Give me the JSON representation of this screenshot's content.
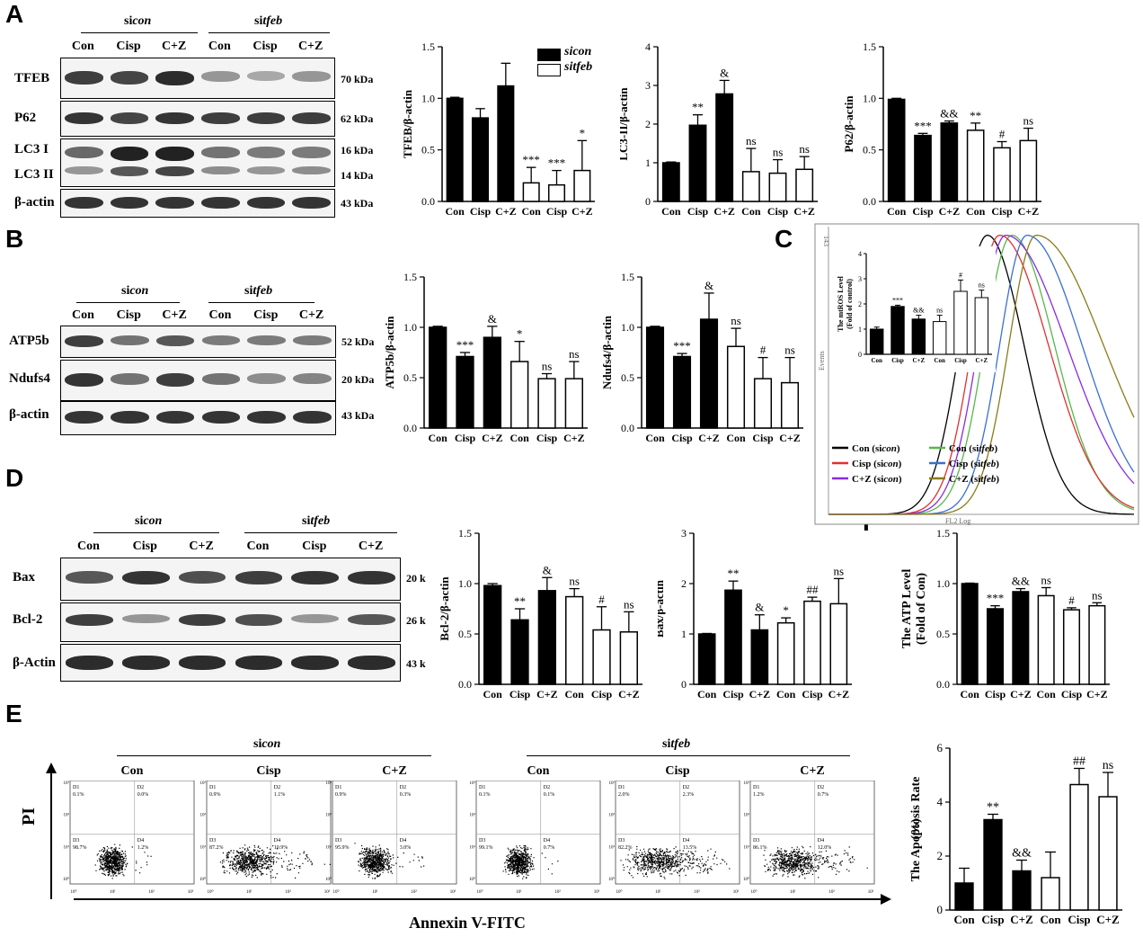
{
  "panel_letters": [
    "A",
    "B",
    "C",
    "D",
    "E",
    "F"
  ],
  "groups": {
    "sicon": "sicon",
    "sitfeb": "sitfeb",
    "si_prefix": "si",
    "con_suffix": "con",
    "tfeb_suffix": "tfeb"
  },
  "lanes": [
    "Con",
    "Cisp",
    "C+Z",
    "Con",
    "Cisp",
    "C+Z"
  ],
  "blots": {
    "A": [
      {
        "label": "TFEB",
        "kda": "70 kDa"
      },
      {
        "label": "P62",
        "kda": "62 kDa"
      },
      {
        "label": "LC3 I",
        "kda": "16 kDa"
      },
      {
        "label": "LC3 II",
        "kda": "14 kDa"
      },
      {
        "label": "β-actin",
        "kda": "43 kDa"
      }
    ],
    "B": [
      {
        "label": "ATP5b",
        "kda": "52 kDa"
      },
      {
        "label": "Ndufs4",
        "kda": "20 kDa"
      },
      {
        "label": "β-actin",
        "kda": "43 kDa"
      }
    ],
    "D": [
      {
        "label": "Bax",
        "kda": "20 k"
      },
      {
        "label": "Bcl-2",
        "kda": "26 k"
      },
      {
        "label": "β-Actin",
        "kda": "43 k"
      }
    ]
  },
  "legend_A": {
    "sicon": "sicon",
    "sitfeb": "sitfeb"
  },
  "chart_data": [
    {
      "id": "tfeb",
      "type": "bar",
      "ylabel": "TFEB/β-actin",
      "categories": [
        "Con",
        "Cisp",
        "C+Z",
        "Con",
        "Cisp",
        "C+Z"
      ],
      "values": [
        1.0,
        0.81,
        1.12,
        0.18,
        0.16,
        0.3
      ],
      "errors": [
        0.01,
        0.09,
        0.22,
        0.15,
        0.14,
        0.29
      ],
      "fill": [
        "black",
        "black",
        "black",
        "white",
        "white",
        "white"
      ],
      "sig": [
        "",
        "",
        "",
        "***",
        "***",
        "*"
      ],
      "ylim": [
        0,
        1.5
      ],
      "yticks": [
        "0.0",
        "0.5",
        "1.0",
        "1.5"
      ]
    },
    {
      "id": "lc3",
      "type": "bar",
      "ylabel": "LC3-II/β-actin",
      "categories": [
        "Con",
        "Cisp",
        "C+Z",
        "Con",
        "Cisp",
        "C+Z"
      ],
      "values": [
        1.0,
        1.97,
        2.78,
        0.77,
        0.73,
        0.83
      ],
      "errors": [
        0.02,
        0.27,
        0.35,
        0.6,
        0.35,
        0.33
      ],
      "fill": [
        "black",
        "black",
        "black",
        "white",
        "white",
        "white"
      ],
      "sig": [
        "",
        "**",
        "&",
        "ns",
        "ns",
        "ns"
      ],
      "ylim": [
        0,
        4
      ],
      "yticks": [
        "0",
        "1",
        "2",
        "3",
        "4"
      ]
    },
    {
      "id": "p62",
      "type": "bar",
      "ylabel": "P62/β-actin",
      "categories": [
        "Con",
        "Cisp",
        "C+Z",
        "Con",
        "Cisp",
        "C+Z"
      ],
      "values": [
        0.99,
        0.64,
        0.76,
        0.69,
        0.52,
        0.59
      ],
      "errors": [
        0.01,
        0.02,
        0.02,
        0.07,
        0.06,
        0.12
      ],
      "fill": [
        "black",
        "black",
        "black",
        "white",
        "white",
        "white"
      ],
      "sig": [
        "",
        "***",
        "&&",
        "**",
        "#",
        "ns"
      ],
      "ylim": [
        0,
        1.5
      ],
      "yticks": [
        "0.0",
        "0.5",
        "1.0",
        "1.5"
      ]
    },
    {
      "id": "atp5b",
      "type": "bar",
      "ylabel": "ATP5b/β-actin",
      "categories": [
        "Con",
        "Cisp",
        "C+Z",
        "Con",
        "Cisp",
        "C+Z"
      ],
      "values": [
        1.0,
        0.71,
        0.9,
        0.66,
        0.49,
        0.49
      ],
      "errors": [
        0.01,
        0.04,
        0.11,
        0.2,
        0.05,
        0.17
      ],
      "fill": [
        "black",
        "black",
        "black",
        "white",
        "white",
        "white"
      ],
      "sig": [
        "",
        "***",
        "&",
        "*",
        "ns",
        "ns"
      ],
      "ylim": [
        0,
        1.5
      ],
      "yticks": [
        "0.0",
        "0.5",
        "1.0",
        "1.5"
      ]
    },
    {
      "id": "ndufs4",
      "type": "bar",
      "ylabel": "Ndufs4/β-actin",
      "categories": [
        "Con",
        "Cisp",
        "C+Z",
        "Con",
        "Cisp",
        "C+Z"
      ],
      "values": [
        1.0,
        0.71,
        1.08,
        0.81,
        0.49,
        0.45
      ],
      "errors": [
        0.01,
        0.03,
        0.26,
        0.18,
        0.21,
        0.25
      ],
      "fill": [
        "black",
        "black",
        "black",
        "white",
        "white",
        "white"
      ],
      "sig": [
        "",
        "***",
        "&",
        "ns",
        "#",
        "ns"
      ],
      "ylim": [
        0,
        1.5
      ],
      "yticks": [
        "0.0",
        "0.5",
        "1.0",
        "1.5"
      ]
    },
    {
      "id": "mros",
      "type": "bar",
      "ylabel": "The mtROS Level (Fold of control)",
      "categories": [
        "Con",
        "Cisp",
        "C+Z",
        "Con",
        "Cisp",
        "C+Z"
      ],
      "values": [
        1.0,
        1.9,
        1.4,
        1.3,
        2.5,
        2.25
      ],
      "errors": [
        0.08,
        0.05,
        0.15,
        0.25,
        0.45,
        0.3
      ],
      "fill": [
        "black",
        "black",
        "black",
        "white",
        "white",
        "white"
      ],
      "sig": [
        "",
        "***",
        "&&",
        "ns",
        "#",
        "ns"
      ],
      "ylim": [
        0,
        4
      ],
      "yticks": [
        "0",
        "1",
        "2",
        "3",
        "4"
      ]
    },
    {
      "id": "bcl2",
      "type": "bar",
      "ylabel": "Bcl-2/β-actin",
      "categories": [
        "Con",
        "Cisp",
        "C+Z",
        "Con",
        "Cisp",
        "C+Z"
      ],
      "values": [
        0.98,
        0.64,
        0.93,
        0.87,
        0.54,
        0.52
      ],
      "errors": [
        0.02,
        0.11,
        0.13,
        0.08,
        0.23,
        0.2
      ],
      "fill": [
        "black",
        "black",
        "black",
        "white",
        "white",
        "white"
      ],
      "sig": [
        "",
        "**",
        "&",
        "ns",
        "#",
        "ns"
      ],
      "ylim": [
        0,
        1.5
      ],
      "yticks": [
        "0.0",
        "0.5",
        "1.0",
        "1.5"
      ]
    },
    {
      "id": "bax",
      "type": "bar",
      "ylabel": "Bax/β-actin",
      "categories": [
        "Con",
        "Cisp",
        "C+Z",
        "Con",
        "Cisp",
        "C+Z"
      ],
      "values": [
        1.0,
        1.87,
        1.08,
        1.22,
        1.65,
        1.6
      ],
      "errors": [
        0.01,
        0.18,
        0.3,
        0.1,
        0.08,
        0.5
      ],
      "fill": [
        "black",
        "black",
        "black",
        "white",
        "white",
        "white"
      ],
      "sig": [
        "",
        "**",
        "&",
        "*",
        "##",
        "ns"
      ],
      "ylim": [
        0,
        3
      ],
      "yticks": [
        "0",
        "1",
        "2",
        "3"
      ]
    },
    {
      "id": "atp",
      "type": "bar",
      "ylabel": "The ATP Level (Fold of Con)",
      "categories": [
        "Con",
        "Cisp",
        "C+Z",
        "Con",
        "Cisp",
        "C+Z"
      ],
      "values": [
        1.0,
        0.75,
        0.92,
        0.88,
        0.74,
        0.78
      ],
      "errors": [
        0.005,
        0.03,
        0.03,
        0.08,
        0.02,
        0.03
      ],
      "fill": [
        "black",
        "black",
        "black",
        "white",
        "white",
        "white"
      ],
      "sig": [
        "",
        "***",
        "&&",
        "ns",
        "#",
        "ns"
      ],
      "ylim": [
        0,
        1.5
      ],
      "yticks": [
        "0.0",
        "0.5",
        "1.0",
        "1.5"
      ]
    },
    {
      "id": "apop",
      "type": "bar",
      "ylabel": "The Apoptosis Rate(%)",
      "categories": [
        "Con",
        "Cisp",
        "C+Z",
        "Con",
        "Cisp",
        "C+Z"
      ],
      "values": [
        1.0,
        3.35,
        1.45,
        1.2,
        4.65,
        4.2
      ],
      "errors": [
        0.55,
        0.2,
        0.4,
        0.95,
        0.6,
        0.9
      ],
      "fill": [
        "black",
        "black",
        "black",
        "white",
        "white",
        "white"
      ],
      "sig": [
        "",
        "**",
        "&&",
        "",
        "##",
        "ns"
      ],
      "ylim": [
        0,
        6
      ],
      "yticks": [
        "0",
        "2",
        "4",
        "6"
      ]
    }
  ],
  "flow_C": {
    "ymax_label": "143",
    "ylabel": "Events",
    "xlabel": "FL2 Log",
    "legend": [
      {
        "cond": "Con",
        "group": "sicon",
        "color": "#000000"
      },
      {
        "cond": "Con",
        "group": "sitfeb",
        "color": "#55b84a"
      },
      {
        "cond": "Cisp",
        "group": "sicon",
        "color": "#e03030"
      },
      {
        "cond": "Cisp",
        "group": "sitfeb",
        "color": "#3a6fd0"
      },
      {
        "cond": "C+Z",
        "group": "sicon",
        "color": "#8a2be2"
      },
      {
        "cond": "C+Z",
        "group": "sitfeb",
        "color": "#8b7b1a"
      }
    ],
    "peaks": [
      0.52,
      0.6,
      0.56,
      0.65,
      0.58,
      0.68
    ]
  },
  "flow_E": {
    "xlabel": "Annexin  V-FITC",
    "ylabel": "PI",
    "plots": [
      {
        "title": "Con",
        "d1": "0.1%",
        "d2": "0.0%",
        "d3": "98.7%",
        "d4": "1.2%"
      },
      {
        "title": "Cisp",
        "d1": "0.9%",
        "d2": "1.1%",
        "d3": "87.2%",
        "d4": "10.9%"
      },
      {
        "title": "C+Z",
        "d1": "0.9%",
        "d2": "0.3%",
        "d3": "95.9%",
        "d4": "3.0%"
      },
      {
        "title": "Con",
        "d1": "0.1%",
        "d2": "0.1%",
        "d3": "99.1%",
        "d4": "0.7%"
      },
      {
        "title": "Cisp",
        "d1": "2.0%",
        "d2": "2.3%",
        "d3": "82.2%",
        "d4": "13.5%"
      },
      {
        "title": "C+Z",
        "d1": "1.2%",
        "d2": "0.7%",
        "d3": "86.1%",
        "d4": "12.0%"
      }
    ],
    "quad_labels": [
      "D1",
      "D2",
      "D3",
      "D4"
    ],
    "tick_labels": [
      "10⁰",
      "10¹",
      "10²",
      "10³"
    ]
  }
}
